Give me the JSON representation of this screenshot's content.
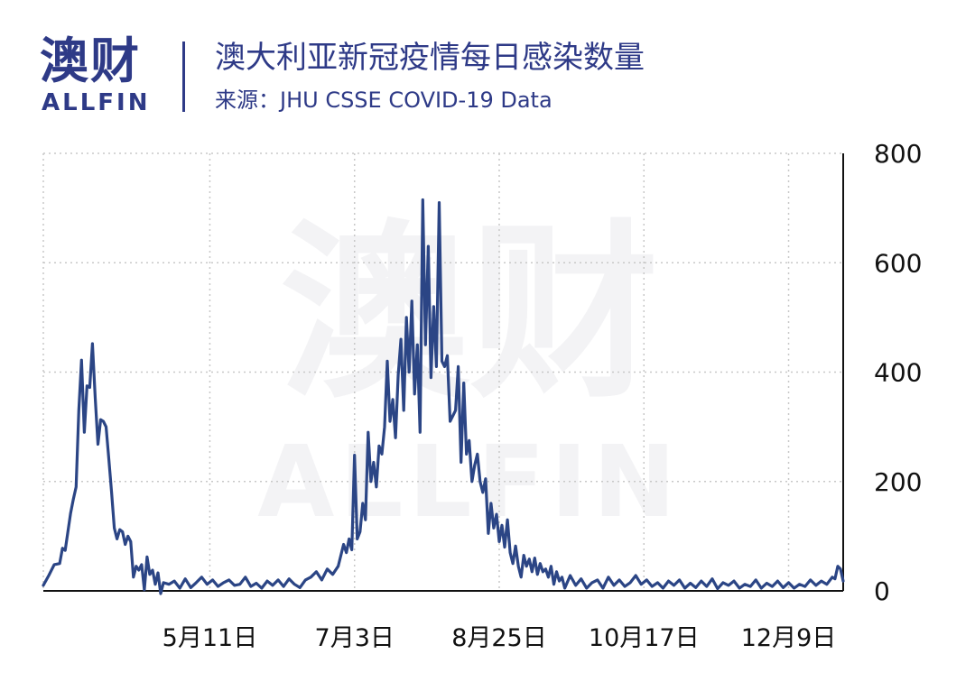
{
  "header": {
    "logo_cn": "澳财",
    "logo_en": "ALLFIN",
    "title": "澳大利亚新冠疫情每日感染数量",
    "source": "来源：JHU CSSE COVID-19 Data"
  },
  "watermark": {
    "cn": "澳财",
    "en": "ALLFIN"
  },
  "colors": {
    "brand": "#2e3a87",
    "line": "#2b4585",
    "grid": "#c8c8c8",
    "axis": "#111111"
  },
  "chart_data": {
    "type": "line",
    "title": "澳大利亚新冠疫情每日感染数量",
    "xlabel": "",
    "ylabel": "",
    "ylim": [
      0,
      800
    ],
    "yticks": [
      0,
      200,
      400,
      600,
      800
    ],
    "y_axis_side": "right",
    "grid": "dotted",
    "xlim": [
      "2020-03-11",
      "2020-12-29"
    ],
    "xticks": [
      {
        "date": "2020-05-11",
        "label": "5月11日"
      },
      {
        "date": "2020-07-03",
        "label": "7月3日"
      },
      {
        "date": "2020-08-25",
        "label": "8月25日"
      },
      {
        "date": "2020-10-17",
        "label": "10月17日"
      },
      {
        "date": "2020-12-09",
        "label": "12月9日"
      }
    ],
    "series": [
      {
        "name": "",
        "points": [
          [
            "2020-03-11",
            10
          ],
          [
            "2020-03-13",
            28
          ],
          [
            "2020-03-15",
            48
          ],
          [
            "2020-03-17",
            50
          ],
          [
            "2020-03-18",
            78
          ],
          [
            "2020-03-19",
            74
          ],
          [
            "2020-03-21",
            142
          ],
          [
            "2020-03-22",
            168
          ],
          [
            "2020-03-23",
            190
          ],
          [
            "2020-03-24",
            330
          ],
          [
            "2020-03-25",
            422
          ],
          [
            "2020-03-26",
            290
          ],
          [
            "2020-03-27",
            375
          ],
          [
            "2020-03-28",
            372
          ],
          [
            "2020-03-29",
            452
          ],
          [
            "2020-03-30",
            352
          ],
          [
            "2020-03-31",
            268
          ],
          [
            "2020-04-01",
            313
          ],
          [
            "2020-04-02",
            310
          ],
          [
            "2020-04-03",
            300
          ],
          [
            "2020-04-04",
            240
          ],
          [
            "2020-04-05",
            180
          ],
          [
            "2020-04-06",
            115
          ],
          [
            "2020-04-07",
            95
          ],
          [
            "2020-04-08",
            112
          ],
          [
            "2020-04-09",
            108
          ],
          [
            "2020-04-10",
            85
          ],
          [
            "2020-04-11",
            100
          ],
          [
            "2020-04-12",
            90
          ],
          [
            "2020-04-13",
            25
          ],
          [
            "2020-04-14",
            45
          ],
          [
            "2020-04-15",
            38
          ],
          [
            "2020-04-16",
            48
          ],
          [
            "2020-04-17",
            2
          ],
          [
            "2020-04-18",
            62
          ],
          [
            "2020-04-19",
            30
          ],
          [
            "2020-04-20",
            38
          ],
          [
            "2020-04-21",
            12
          ],
          [
            "2020-04-22",
            33
          ],
          [
            "2020-04-23",
            -5
          ],
          [
            "2020-04-24",
            15
          ],
          [
            "2020-04-26",
            12
          ],
          [
            "2020-04-28",
            18
          ],
          [
            "2020-04-30",
            5
          ],
          [
            "2020-05-02",
            22
          ],
          [
            "2020-05-04",
            6
          ],
          [
            "2020-05-06",
            15
          ],
          [
            "2020-05-08",
            25
          ],
          [
            "2020-05-10",
            12
          ],
          [
            "2020-05-12",
            20
          ],
          [
            "2020-05-14",
            8
          ],
          [
            "2020-05-16",
            15
          ],
          [
            "2020-05-18",
            20
          ],
          [
            "2020-05-20",
            10
          ],
          [
            "2020-05-22",
            12
          ],
          [
            "2020-05-24",
            25
          ],
          [
            "2020-05-26",
            8
          ],
          [
            "2020-05-28",
            14
          ],
          [
            "2020-05-30",
            5
          ],
          [
            "2020-06-01",
            18
          ],
          [
            "2020-06-03",
            10
          ],
          [
            "2020-06-05",
            20
          ],
          [
            "2020-06-07",
            8
          ],
          [
            "2020-06-09",
            22
          ],
          [
            "2020-06-11",
            12
          ],
          [
            "2020-06-13",
            6
          ],
          [
            "2020-06-15",
            20
          ],
          [
            "2020-06-17",
            25
          ],
          [
            "2020-06-19",
            35
          ],
          [
            "2020-06-21",
            20
          ],
          [
            "2020-06-23",
            40
          ],
          [
            "2020-06-25",
            30
          ],
          [
            "2020-06-27",
            45
          ],
          [
            "2020-06-29",
            85
          ],
          [
            "2020-06-30",
            70
          ],
          [
            "2020-07-01",
            95
          ],
          [
            "2020-07-02",
            75
          ],
          [
            "2020-07-03",
            248
          ],
          [
            "2020-07-04",
            95
          ],
          [
            "2020-07-05",
            108
          ],
          [
            "2020-07-06",
            160
          ],
          [
            "2020-07-07",
            130
          ],
          [
            "2020-07-08",
            290
          ],
          [
            "2020-07-09",
            200
          ],
          [
            "2020-07-10",
            235
          ],
          [
            "2020-07-11",
            190
          ],
          [
            "2020-07-12",
            265
          ],
          [
            "2020-07-13",
            250
          ],
          [
            "2020-07-14",
            300
          ],
          [
            "2020-07-15",
            420
          ],
          [
            "2020-07-16",
            310
          ],
          [
            "2020-07-17",
            350
          ],
          [
            "2020-07-18",
            280
          ],
          [
            "2020-07-19",
            395
          ],
          [
            "2020-07-20",
            460
          ],
          [
            "2020-07-21",
            330
          ],
          [
            "2020-07-22",
            500
          ],
          [
            "2020-07-23",
            400
          ],
          [
            "2020-07-24",
            530
          ],
          [
            "2020-07-25",
            360
          ],
          [
            "2020-07-26",
            450
          ],
          [
            "2020-07-27",
            290
          ],
          [
            "2020-07-28",
            715
          ],
          [
            "2020-07-29",
            450
          ],
          [
            "2020-07-30",
            630
          ],
          [
            "2020-07-31",
            390
          ],
          [
            "2020-08-01",
            520
          ],
          [
            "2020-08-02",
            410
          ],
          [
            "2020-08-03",
            710
          ],
          [
            "2020-08-04",
            420
          ],
          [
            "2020-08-05",
            410
          ],
          [
            "2020-08-06",
            430
          ],
          [
            "2020-08-07",
            310
          ],
          [
            "2020-08-08",
            320
          ],
          [
            "2020-08-09",
            330
          ],
          [
            "2020-08-10",
            410
          ],
          [
            "2020-08-11",
            235
          ],
          [
            "2020-08-12",
            380
          ],
          [
            "2020-08-13",
            250
          ],
          [
            "2020-08-14",
            275
          ],
          [
            "2020-08-15",
            200
          ],
          [
            "2020-08-16",
            230
          ],
          [
            "2020-08-17",
            250
          ],
          [
            "2020-08-18",
            200
          ],
          [
            "2020-08-19",
            180
          ],
          [
            "2020-08-20",
            205
          ],
          [
            "2020-08-21",
            105
          ],
          [
            "2020-08-22",
            160
          ],
          [
            "2020-08-23",
            115
          ],
          [
            "2020-08-24",
            140
          ],
          [
            "2020-08-25",
            90
          ],
          [
            "2020-08-26",
            120
          ],
          [
            "2020-08-27",
            80
          ],
          [
            "2020-08-28",
            130
          ],
          [
            "2020-08-29",
            70
          ],
          [
            "2020-08-30",
            50
          ],
          [
            "2020-08-31",
            82
          ],
          [
            "2020-09-01",
            45
          ],
          [
            "2020-09-02",
            25
          ],
          [
            "2020-09-03",
            65
          ],
          [
            "2020-09-04",
            45
          ],
          [
            "2020-09-05",
            58
          ],
          [
            "2020-09-06",
            35
          ],
          [
            "2020-09-07",
            60
          ],
          [
            "2020-09-08",
            30
          ],
          [
            "2020-09-09",
            50
          ],
          [
            "2020-09-10",
            35
          ],
          [
            "2020-09-11",
            40
          ],
          [
            "2020-09-12",
            25
          ],
          [
            "2020-09-13",
            45
          ],
          [
            "2020-09-14",
            12
          ],
          [
            "2020-09-15",
            35
          ],
          [
            "2020-09-16",
            18
          ],
          [
            "2020-09-17",
            25
          ],
          [
            "2020-09-18",
            5
          ],
          [
            "2020-09-20",
            28
          ],
          [
            "2020-09-22",
            10
          ],
          [
            "2020-09-24",
            22
          ],
          [
            "2020-09-26",
            5
          ],
          [
            "2020-09-28",
            15
          ],
          [
            "2020-09-30",
            20
          ],
          [
            "2020-10-02",
            5
          ],
          [
            "2020-10-04",
            25
          ],
          [
            "2020-10-06",
            10
          ],
          [
            "2020-10-08",
            20
          ],
          [
            "2020-10-10",
            8
          ],
          [
            "2020-10-12",
            15
          ],
          [
            "2020-10-14",
            28
          ],
          [
            "2020-10-16",
            12
          ],
          [
            "2020-10-18",
            20
          ],
          [
            "2020-10-20",
            8
          ],
          [
            "2020-10-22",
            15
          ],
          [
            "2020-10-24",
            5
          ],
          [
            "2020-10-26",
            18
          ],
          [
            "2020-10-28",
            10
          ],
          [
            "2020-10-30",
            20
          ],
          [
            "2020-11-01",
            5
          ],
          [
            "2020-11-03",
            14
          ],
          [
            "2020-11-05",
            6
          ],
          [
            "2020-11-07",
            18
          ],
          [
            "2020-11-09",
            8
          ],
          [
            "2020-11-11",
            22
          ],
          [
            "2020-11-13",
            4
          ],
          [
            "2020-11-15",
            15
          ],
          [
            "2020-11-17",
            10
          ],
          [
            "2020-11-19",
            18
          ],
          [
            "2020-11-21",
            5
          ],
          [
            "2020-11-23",
            12
          ],
          [
            "2020-11-25",
            8
          ],
          [
            "2020-11-27",
            20
          ],
          [
            "2020-11-29",
            5
          ],
          [
            "2020-12-01",
            14
          ],
          [
            "2020-12-03",
            8
          ],
          [
            "2020-12-05",
            18
          ],
          [
            "2020-12-07",
            6
          ],
          [
            "2020-12-09",
            15
          ],
          [
            "2020-12-11",
            5
          ],
          [
            "2020-12-13",
            12
          ],
          [
            "2020-12-15",
            8
          ],
          [
            "2020-12-17",
            20
          ],
          [
            "2020-12-19",
            10
          ],
          [
            "2020-12-21",
            18
          ],
          [
            "2020-12-23",
            12
          ],
          [
            "2020-12-25",
            25
          ],
          [
            "2020-12-26",
            22
          ],
          [
            "2020-12-27",
            45
          ],
          [
            "2020-12-28",
            40
          ],
          [
            "2020-12-29",
            18
          ]
        ]
      }
    ]
  }
}
